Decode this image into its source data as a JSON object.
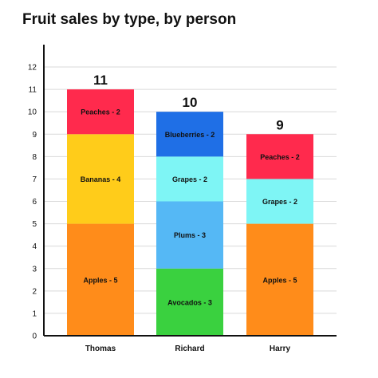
{
  "chart_data": {
    "type": "bar",
    "stacked": true,
    "title": "Fruit sales by type, by person",
    "xlabel": "",
    "ylabel": "",
    "ylim": [
      0,
      12
    ],
    "yticks": [
      "0",
      "1",
      "2",
      "3",
      "4",
      "5",
      "6",
      "7",
      "8",
      "9",
      "10",
      "11",
      "12"
    ],
    "grid": true,
    "categories": [
      "Thomas",
      "Richard",
      "Harry"
    ],
    "totals": [
      "11",
      "10",
      "9"
    ],
    "stacks": [
      [
        {
          "label": "Apples - 5",
          "value": 5,
          "color": "#ff8c1a"
        },
        {
          "label": "Bananas - 4",
          "value": 4,
          "color": "#ffcc1a"
        },
        {
          "label": "Peaches - 2",
          "value": 2,
          "color": "#ff2a4d"
        }
      ],
      [
        {
          "label": "Avocados - 3",
          "value": 3,
          "color": "#3ad13f"
        },
        {
          "label": "Plums - 3",
          "value": 3,
          "color": "#55b8f5"
        },
        {
          "label": "Grapes - 2",
          "value": 2,
          "color": "#7ef5f5"
        },
        {
          "label": "Blueberries - 2",
          "value": 2,
          "color": "#1f6fe6"
        }
      ],
      [
        {
          "label": "Apples - 5",
          "value": 5,
          "color": "#ff8c1a"
        },
        {
          "label": "Grapes - 2",
          "value": 2,
          "color": "#7ef5f5"
        },
        {
          "label": "Peaches - 2",
          "value": 2,
          "color": "#ff2a4d"
        }
      ]
    ]
  }
}
